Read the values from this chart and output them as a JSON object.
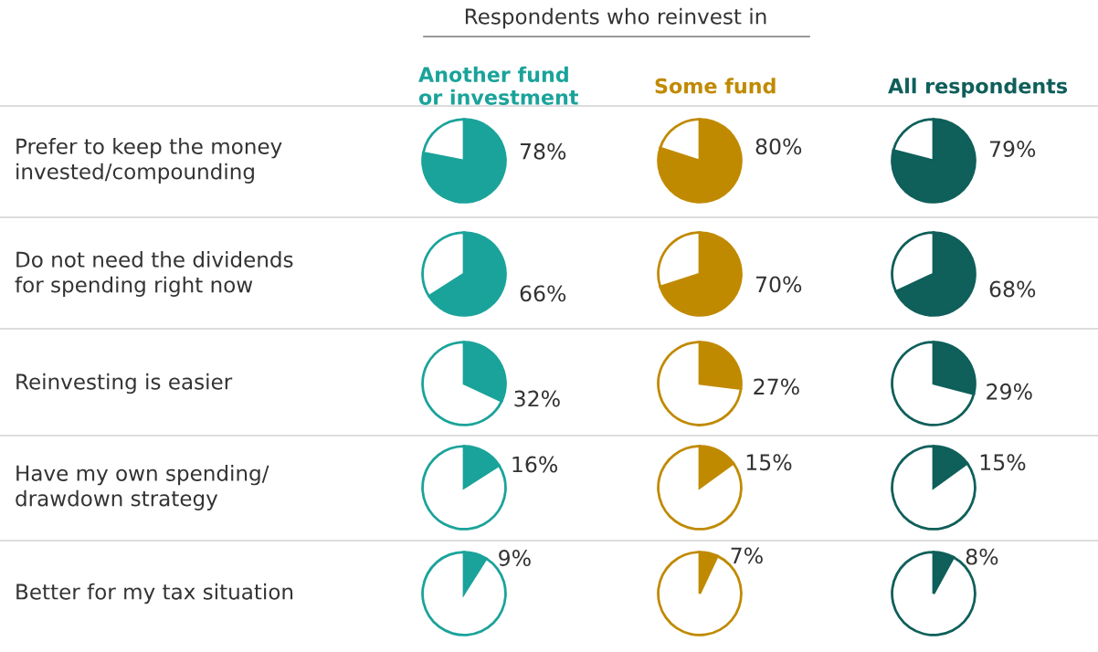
{
  "chart_data": [
    {
      "type": "pie",
      "title": "Another fund\nor investment",
      "ylabel": "Prefer to keep the money\ninvested/compounding",
      "annotations": [
        "Respondents who reinvest in"
      ],
      "categories": [
        null,
        null
      ],
      "values": [
        78,
        22
      ],
      "colors": [
        "#1aa39a",
        "#ffffff"
      ],
      "value_labels": [
        "78%",
        null
      ]
    },
    {
      "type": "pie",
      "title": "Some fund",
      "categories": [
        null,
        null
      ],
      "values": [
        80,
        20
      ],
      "colors": [
        "#c08a00",
        "#ffffff"
      ],
      "value_labels": [
        "80%",
        null
      ]
    },
    {
      "type": "pie",
      "title": "All respondents",
      "categories": [
        null,
        null
      ],
      "values": [
        79,
        21
      ],
      "colors": [
        "#0f5f5a",
        "#ffffff"
      ],
      "value_labels": [
        "79%",
        null
      ]
    },
    {
      "type": "pie",
      "ylabel": "Do not need the dividends\nfor spending right now",
      "categories": [
        null,
        null
      ],
      "values": [
        66,
        34
      ],
      "colors": [
        "#1aa39a",
        "#ffffff"
      ],
      "value_labels": [
        "66%",
        null
      ]
    },
    {
      "type": "pie",
      "categories": [
        null,
        null
      ],
      "values": [
        70,
        30
      ],
      "colors": [
        "#c08a00",
        "#ffffff"
      ],
      "value_labels": [
        "70%",
        null
      ]
    },
    {
      "type": "pie",
      "categories": [
        null,
        null
      ],
      "values": [
        68,
        32
      ],
      "colors": [
        "#0f5f5a",
        "#ffffff"
      ],
      "value_labels": [
        "68%",
        null
      ]
    },
    {
      "type": "pie",
      "ylabel": "Reinvesting is easier",
      "categories": [
        null,
        null
      ],
      "values": [
        32,
        68
      ],
      "colors": [
        "#1aa39a",
        "#ffffff"
      ],
      "value_labels": [
        "32%",
        null
      ]
    },
    {
      "type": "pie",
      "categories": [
        null,
        null
      ],
      "values": [
        27,
        73
      ],
      "colors": [
        "#c08a00",
        "#ffffff"
      ],
      "value_labels": [
        "27%",
        null
      ]
    },
    {
      "type": "pie",
      "categories": [
        null,
        null
      ],
      "values": [
        29,
        71
      ],
      "colors": [
        "#0f5f5a",
        "#ffffff"
      ],
      "value_labels": [
        "29%",
        null
      ]
    },
    {
      "type": "pie",
      "ylabel": "Have my own spending/\ndrawdown strategy",
      "categories": [
        null,
        null
      ],
      "values": [
        16,
        84
      ],
      "colors": [
        "#1aa39a",
        "#ffffff"
      ],
      "value_labels": [
        "16%",
        null
      ]
    },
    {
      "type": "pie",
      "categories": [
        null,
        null
      ],
      "values": [
        15,
        85
      ],
      "colors": [
        "#c08a00",
        "#ffffff"
      ],
      "value_labels": [
        "15%",
        null
      ]
    },
    {
      "type": "pie",
      "categories": [
        null,
        null
      ],
      "values": [
        15,
        85
      ],
      "colors": [
        "#0f5f5a",
        "#ffffff"
      ],
      "value_labels": [
        "15%",
        null
      ]
    },
    {
      "type": "pie",
      "ylabel": "Better for my tax situation",
      "categories": [
        null,
        null
      ],
      "values": [
        9,
        91
      ],
      "colors": [
        "#1aa39a",
        "#ffffff"
      ],
      "value_labels": [
        "9%",
        null
      ]
    },
    {
      "type": "pie",
      "categories": [
        null,
        null
      ],
      "values": [
        7,
        93
      ],
      "colors": [
        "#c08a00",
        "#ffffff"
      ],
      "value_labels": [
        "7%",
        null
      ]
    },
    {
      "type": "pie",
      "categories": [
        null,
        null
      ],
      "values": [
        8,
        92
      ],
      "colors": [
        "#0f5f5a",
        "#ffffff"
      ],
      "value_labels": [
        "8%",
        null
      ]
    }
  ]
}
